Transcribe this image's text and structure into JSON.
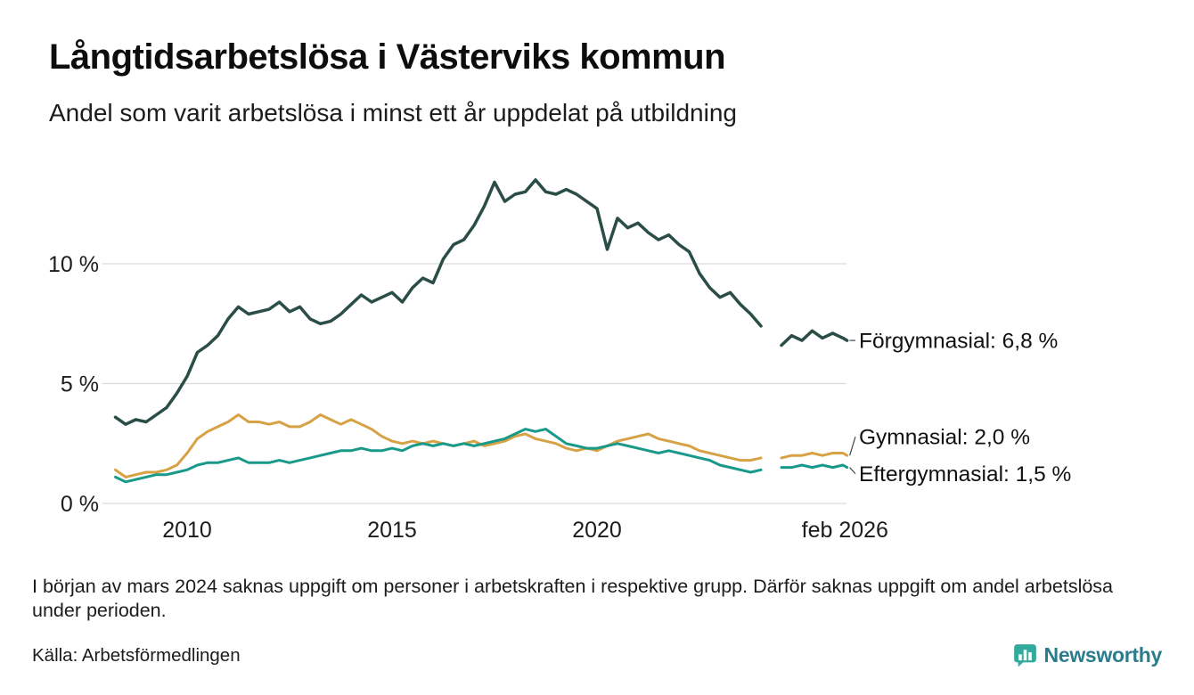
{
  "header": {
    "title": "Långtidsarbetslösa i Västerviks kommun",
    "subtitle": "Andel som varit arbetslösa i minst ett år uppdelat på utbildning"
  },
  "chart_data": {
    "type": "line",
    "title": "Långtidsarbetslösa i Västerviks kommun",
    "xlabel": "",
    "ylabel": "",
    "xlim": [
      2008.1,
      2026.25
    ],
    "ylim": [
      0,
      14.5
    ],
    "grid": "horizontal",
    "legend_position": "right-end-labels",
    "gap_note": "Data saknas kring mars 2024",
    "y_ticks": [
      {
        "value": 0,
        "label": "0 %"
      },
      {
        "value": 5,
        "label": "5 %"
      },
      {
        "value": 10,
        "label": "10 %"
      }
    ],
    "x_ticks": [
      {
        "value": 2010,
        "label": "2010"
      },
      {
        "value": 2015,
        "label": "2015"
      },
      {
        "value": 2020,
        "label": "2020"
      },
      {
        "value": 2026.05,
        "label": "feb 2026"
      }
    ],
    "x": [
      2008.25,
      2008.5,
      2008.75,
      2009,
      2009.25,
      2009.5,
      2009.75,
      2010,
      2010.25,
      2010.5,
      2010.75,
      2011,
      2011.25,
      2011.5,
      2011.75,
      2012,
      2012.25,
      2012.5,
      2012.75,
      2013,
      2013.25,
      2013.5,
      2013.75,
      2014,
      2014.25,
      2014.5,
      2014.75,
      2015,
      2015.25,
      2015.5,
      2015.75,
      2016,
      2016.25,
      2016.5,
      2016.75,
      2017,
      2017.25,
      2017.5,
      2017.75,
      2018,
      2018.25,
      2018.5,
      2018.75,
      2019,
      2019.25,
      2019.5,
      2019.75,
      2020,
      2020.25,
      2020.5,
      2020.75,
      2021,
      2021.25,
      2021.5,
      2021.75,
      2022,
      2022.25,
      2022.5,
      2022.75,
      2023,
      2023.25,
      2023.5,
      2023.75,
      2024,
      2024.25,
      2024.5,
      2024.75,
      2025,
      2025.25,
      2025.5,
      2025.75,
      2026,
      2026.1
    ],
    "series": [
      {
        "name": "Förgymnasial",
        "end_label": "Förgymnasial: 6,8 %",
        "end_value": 6.8,
        "color": "#2a4d47",
        "stroke_width": 3.5,
        "label_dy": 0,
        "values": [
          3.6,
          3.3,
          3.5,
          3.4,
          3.7,
          4.0,
          4.6,
          5.3,
          6.3,
          6.6,
          7.0,
          7.7,
          8.2,
          7.9,
          8.0,
          8.1,
          8.4,
          8.0,
          8.2,
          7.7,
          7.5,
          7.6,
          7.9,
          8.3,
          8.7,
          8.4,
          8.6,
          8.8,
          8.4,
          9.0,
          9.4,
          9.2,
          10.2,
          10.8,
          11.0,
          11.6,
          12.4,
          13.4,
          12.6,
          12.9,
          13.0,
          13.5,
          13.0,
          12.9,
          13.1,
          12.9,
          12.6,
          12.3,
          10.6,
          11.9,
          11.5,
          11.7,
          11.3,
          11.0,
          11.2,
          10.8,
          10.5,
          9.6,
          9.0,
          8.6,
          8.8,
          8.3,
          7.9,
          7.4,
          null,
          6.6,
          7.0,
          6.8,
          7.2,
          6.9,
          7.1,
          6.9,
          6.8
        ]
      },
      {
        "name": "Gymnasial",
        "end_label": "Gymnasial: 2,0 %",
        "end_value": 2.0,
        "color": "#d7a246",
        "stroke_width": 3,
        "label_dy": -21,
        "values": [
          1.4,
          1.1,
          1.2,
          1.3,
          1.3,
          1.4,
          1.6,
          2.1,
          2.7,
          3.0,
          3.2,
          3.4,
          3.7,
          3.4,
          3.4,
          3.3,
          3.4,
          3.2,
          3.2,
          3.4,
          3.7,
          3.5,
          3.3,
          3.5,
          3.3,
          3.1,
          2.8,
          2.6,
          2.5,
          2.6,
          2.5,
          2.6,
          2.5,
          2.4,
          2.5,
          2.6,
          2.4,
          2.5,
          2.6,
          2.8,
          2.9,
          2.7,
          2.6,
          2.5,
          2.3,
          2.2,
          2.3,
          2.2,
          2.4,
          2.6,
          2.7,
          2.8,
          2.9,
          2.7,
          2.6,
          2.5,
          2.4,
          2.2,
          2.1,
          2.0,
          1.9,
          1.8,
          1.8,
          1.9,
          null,
          1.9,
          2.0,
          2.0,
          2.1,
          2.0,
          2.1,
          2.1,
          2.0
        ]
      },
      {
        "name": "Eftergymnasial",
        "end_label": "Eftergymnasial: 1,5 %",
        "end_value": 1.5,
        "color": "#18998a",
        "stroke_width": 3,
        "label_dy": 7,
        "values": [
          1.1,
          0.9,
          1.0,
          1.1,
          1.2,
          1.2,
          1.3,
          1.4,
          1.6,
          1.7,
          1.7,
          1.8,
          1.9,
          1.7,
          1.7,
          1.7,
          1.8,
          1.7,
          1.8,
          1.9,
          2.0,
          2.1,
          2.2,
          2.2,
          2.3,
          2.2,
          2.2,
          2.3,
          2.2,
          2.4,
          2.5,
          2.4,
          2.5,
          2.4,
          2.5,
          2.4,
          2.5,
          2.6,
          2.7,
          2.9,
          3.1,
          3.0,
          3.1,
          2.8,
          2.5,
          2.4,
          2.3,
          2.3,
          2.4,
          2.5,
          2.4,
          2.3,
          2.2,
          2.1,
          2.2,
          2.1,
          2.0,
          1.9,
          1.8,
          1.6,
          1.5,
          1.4,
          1.3,
          1.4,
          null,
          1.5,
          1.5,
          1.6,
          1.5,
          1.6,
          1.5,
          1.6,
          1.5
        ]
      }
    ],
    "colors": {
      "grid": "#dcdcdc",
      "axis_text": "#1c1c1c",
      "label_text": "#111111",
      "connector": "#444444"
    }
  },
  "footnote": "I början av mars 2024 saknas uppgift om personer i arbetskraften i respektive grupp. Därför saknas uppgift om andel arbetslösa under perioden.",
  "source": "Källa: Arbetsförmedlingen",
  "branding": {
    "name": "Newsworthy",
    "icon_color": "#33ab9c",
    "text_color": "#2a7d8c"
  }
}
